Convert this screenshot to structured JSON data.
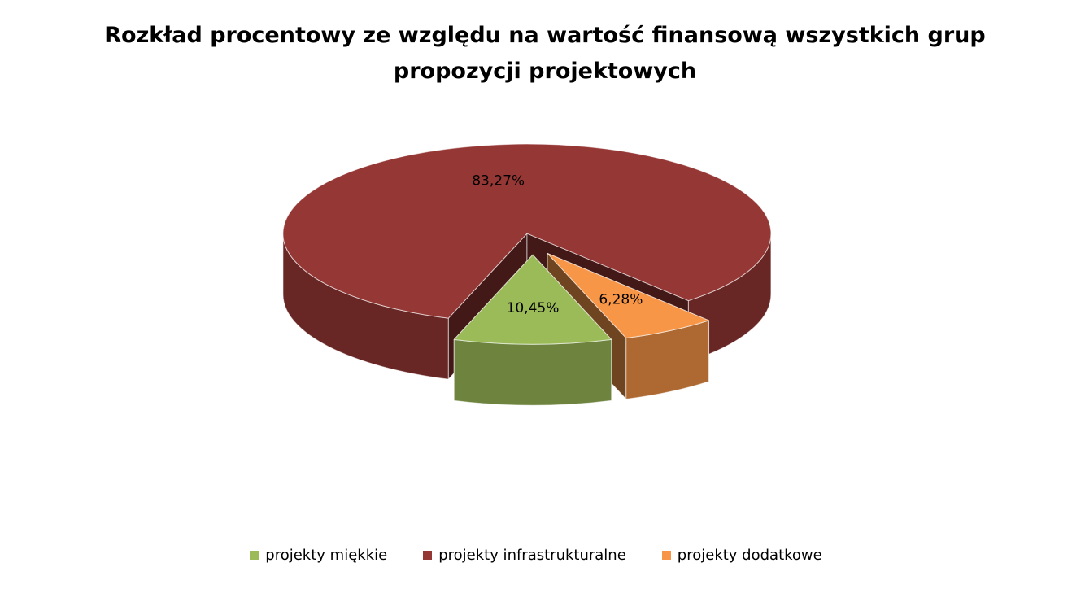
{
  "chart_data": {
    "type": "pie3d",
    "title": "Rozkład procentowy ze względu na wartość finansową wszystkich grup propozycji projektowych",
    "categories": [
      "projekty miękkie",
      "projekty infrastrukturalne",
      "projekty dodatkowe"
    ],
    "values": [
      10.45,
      83.27,
      6.28
    ],
    "value_labels": [
      "10,45%",
      "83,27%",
      "6,28%"
    ],
    "colors": [
      "#9bbb59",
      "#953735",
      "#f79646"
    ],
    "legend": "bottom"
  }
}
